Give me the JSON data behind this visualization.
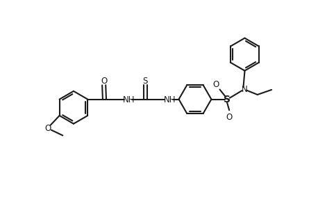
{
  "background_color": "#ffffff",
  "line_color": "#1a1a1a",
  "line_width": 1.5,
  "fig_width": 4.58,
  "fig_height": 2.93,
  "dpi": 100,
  "xlim": [
    -0.5,
    9.5
  ],
  "ylim": [
    -1.0,
    6.5
  ],
  "ring_r": 0.6,
  "font_size": 8.5
}
